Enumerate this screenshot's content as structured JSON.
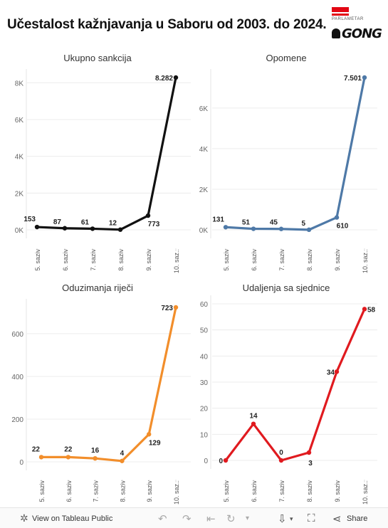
{
  "title": "Učestalost kažnjavanja u Saboru od 2003. do 2024.",
  "logo": {
    "top_text": "PARLAMETAR",
    "brand": "GONG"
  },
  "footer": {
    "view_label": "View on Tableau Public",
    "share_label": "Share"
  },
  "colors": {
    "black": "#111111",
    "blue": "#4e79a7",
    "orange": "#f28e2b",
    "red": "#e01a1f"
  },
  "chart_data": [
    {
      "type": "line",
      "title": "Ukupno sankcija",
      "categories": [
        "5. saziv",
        "6. saziv",
        "7. saziv",
        "8. saziv",
        "9. saziv",
        "10. saz.."
      ],
      "values": [
        153,
        87,
        61,
        12,
        773,
        8282
      ],
      "data_labels": [
        "153",
        "87",
        "61",
        "12",
        "773",
        "8.282"
      ],
      "ylim": [
        0,
        8282
      ],
      "ticks": [
        0,
        2000,
        4000,
        6000,
        8000
      ],
      "tick_labels": [
        "0K",
        "2K",
        "4K",
        "6K",
        "8K"
      ],
      "color": "#111111"
    },
    {
      "type": "line",
      "title": "Opomene",
      "categories": [
        "5. saziv",
        "6. saziv",
        "7. saziv",
        "8. saziv",
        "9. saziv",
        "10. saz.."
      ],
      "values": [
        131,
        51,
        45,
        5,
        610,
        7501
      ],
      "data_labels": [
        "131",
        "51",
        "45",
        "5",
        "610",
        "7.501"
      ],
      "ylim": [
        0,
        7501
      ],
      "ticks": [
        0,
        2000,
        4000,
        6000
      ],
      "tick_labels": [
        "0K",
        "2K",
        "4K",
        "6K"
      ],
      "color": "#4e79a7"
    },
    {
      "type": "line",
      "title": "Oduzimanja riječi",
      "categories": [
        "5. saziv",
        "6. saziv",
        "7. saziv",
        "8. saziv",
        "9. saziv",
        "10. saz.."
      ],
      "values": [
        22,
        22,
        16,
        4,
        129,
        723
      ],
      "data_labels": [
        "22",
        "22",
        "16",
        "4",
        "129",
        "723"
      ],
      "ylim": [
        0,
        723
      ],
      "ticks": [
        0,
        200,
        400,
        600
      ],
      "tick_labels": [
        "0",
        "200",
        "400",
        "600"
      ],
      "color": "#f28e2b"
    },
    {
      "type": "line",
      "title": "Udaljenja sa sjednice",
      "categories": [
        "5. saziv",
        "6. saziv",
        "7. saziv",
        "8. saziv",
        "9. saziv",
        "10. saz.."
      ],
      "values": [
        0,
        14,
        0,
        3,
        34,
        58
      ],
      "data_labels": [
        "0",
        "14",
        "0",
        "3",
        "34",
        "58"
      ],
      "ylim": [
        0,
        60
      ],
      "ticks": [
        0,
        10,
        20,
        30,
        40,
        50,
        60
      ],
      "tick_labels": [
        "0",
        "10",
        "20",
        "30",
        "40",
        "50",
        "60"
      ],
      "color": "#e01a1f"
    }
  ]
}
